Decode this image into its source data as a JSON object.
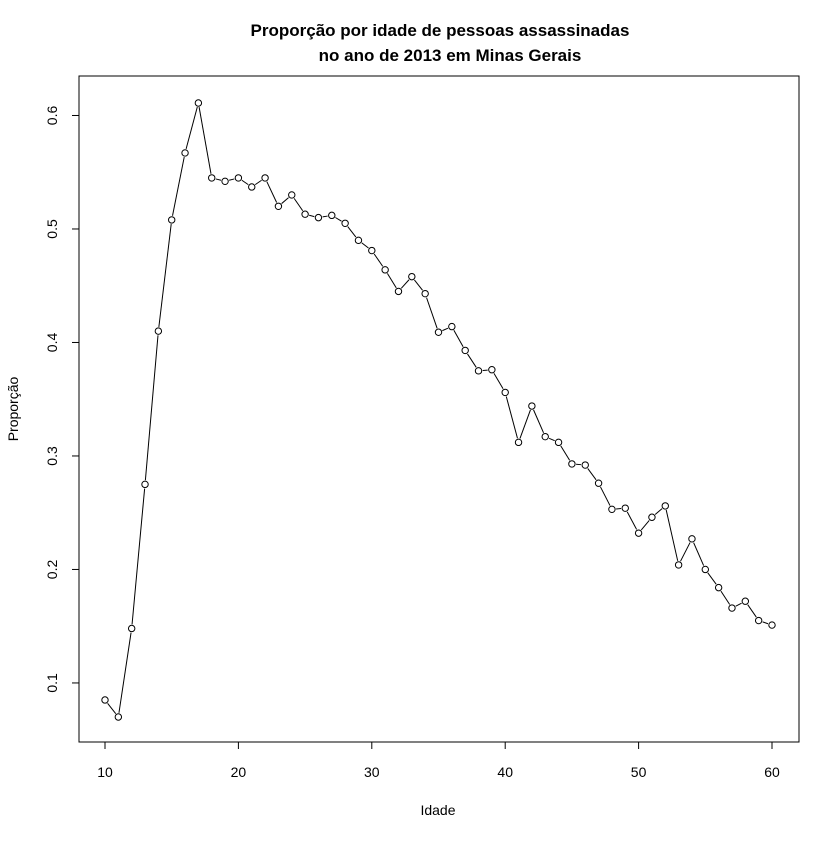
{
  "chart_data": {
    "type": "line",
    "title": [
      "Proporção por idade de pessoas assassinadas",
      "no ano de 2013 em Minas Gerais"
    ],
    "xlabel": "Idade",
    "ylabel": "Proporção",
    "xlim": [
      10,
      60
    ],
    "ylim": [
      0.07,
      0.611
    ],
    "xticks": [
      10,
      20,
      30,
      40,
      50,
      60
    ],
    "yticks": [
      0.1,
      0.2,
      0.3,
      0.4,
      0.5,
      0.6
    ],
    "xtick_labels": [
      "10",
      "20",
      "30",
      "40",
      "50",
      "60"
    ],
    "ytick_labels": [
      "0.1",
      "0.2",
      "0.3",
      "0.4",
      "0.5",
      "0.6"
    ],
    "markers": "open-circle",
    "line_color": "#000000",
    "grid": false,
    "legend": "none",
    "x": [
      10,
      11,
      12,
      13,
      14,
      15,
      16,
      17,
      18,
      19,
      20,
      21,
      22,
      23,
      24,
      25,
      26,
      27,
      28,
      29,
      30,
      31,
      32,
      33,
      34,
      35,
      36,
      37,
      38,
      39,
      40,
      41,
      42,
      43,
      44,
      45,
      46,
      47,
      48,
      49,
      50,
      51,
      52,
      53,
      54,
      55,
      56,
      57,
      58,
      59,
      60
    ],
    "y": [
      0.085,
      0.07,
      0.148,
      0.275,
      0.41,
      0.508,
      0.567,
      0.611,
      0.545,
      0.542,
      0.545,
      0.537,
      0.545,
      0.52,
      0.53,
      0.513,
      0.51,
      0.512,
      0.505,
      0.49,
      0.481,
      0.464,
      0.445,
      0.458,
      0.443,
      0.409,
      0.414,
      0.393,
      0.375,
      0.376,
      0.356,
      0.312,
      0.344,
      0.317,
      0.312,
      0.293,
      0.292,
      0.276,
      0.253,
      0.254,
      0.232,
      0.246,
      0.256,
      0.204,
      0.227,
      0.2,
      0.184,
      0.166,
      0.172,
      0.155,
      0.151
    ]
  }
}
